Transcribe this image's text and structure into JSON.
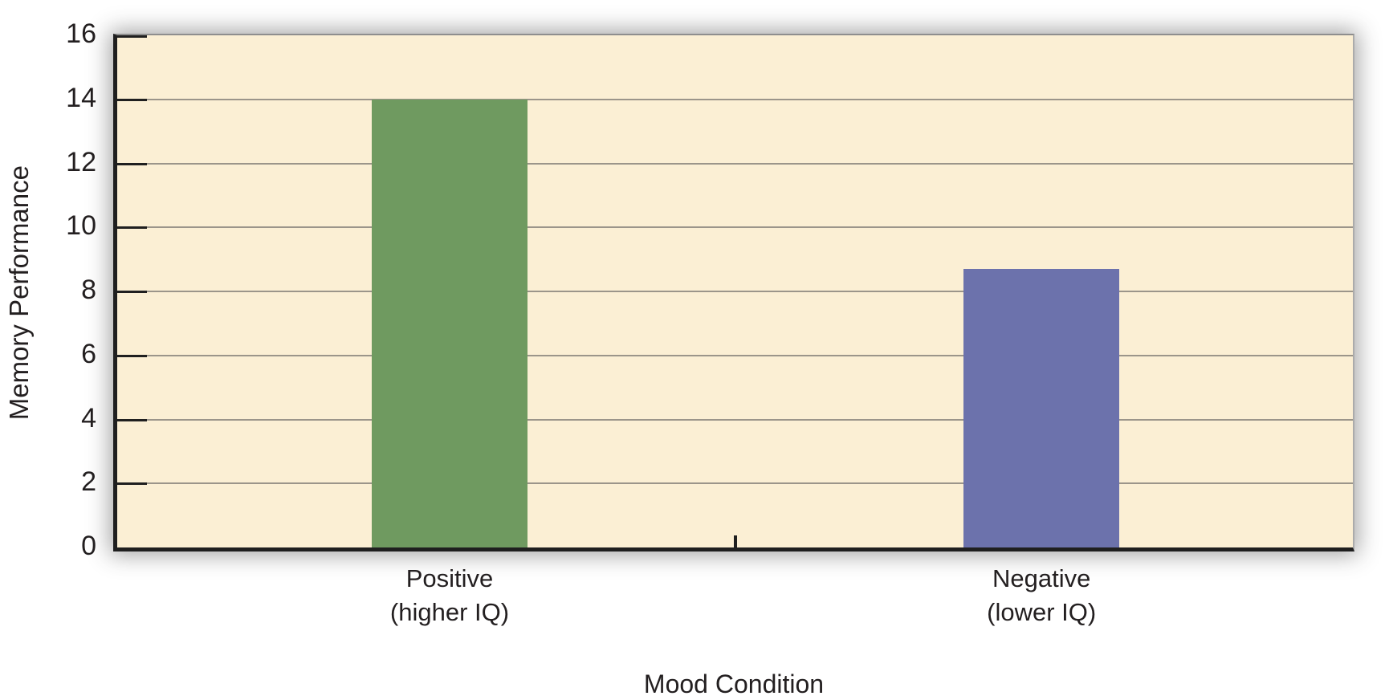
{
  "chart_data": {
    "type": "bar",
    "title": "",
    "categories": [
      {
        "label": "Positive",
        "sublabel": "(higher IQ)"
      },
      {
        "label": "Negative",
        "sublabel": "(lower IQ)"
      }
    ],
    "values": [
      14,
      8.7
    ],
    "bar_colors": [
      "#6F9A60",
      "#6C72AC"
    ],
    "bar_center_fracs": [
      0.269,
      0.748
    ],
    "xlabel": "Mood Condition",
    "ylabel": "Memory Performance",
    "ylim": [
      0,
      16
    ],
    "ytick_step": 2,
    "yticks": [
      0,
      2,
      4,
      6,
      8,
      10,
      12,
      14,
      16
    ],
    "grid": true,
    "legend": false,
    "plot_bg": "#FBEFD4",
    "gridline_color": "#9B958A",
    "axis_color": "#1F1F1F",
    "shadow": true
  }
}
